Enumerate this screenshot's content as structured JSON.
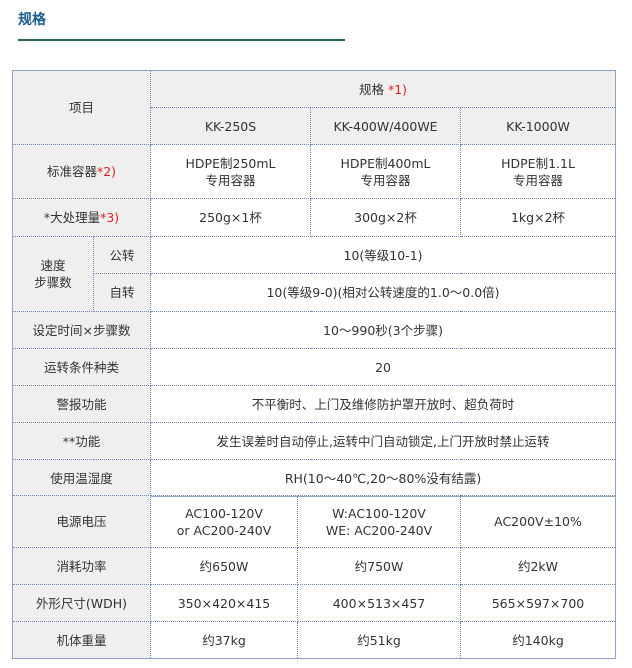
{
  "title": "规格",
  "header": {
    "item": "项目",
    "spec": "规格",
    "spec_note": "*1)",
    "models": [
      "KK-250S",
      "KK-400W/400WE",
      "KK-1000W"
    ]
  },
  "rows": {
    "container": {
      "label": "标准容器",
      "note": "*2)",
      "values": [
        [
          "HDPE制250mL",
          "专用容器"
        ],
        [
          "HDPE制400mL",
          "专用容器"
        ],
        [
          "HDPE制1.1L",
          "专用容器"
        ]
      ]
    },
    "capacity": {
      "label": "*大处理量",
      "note": "*3)",
      "values": [
        "250g×1杯",
        "300g×2杯",
        "1kg×2杯"
      ]
    },
    "speed": {
      "label": [
        "速度",
        "步骤数"
      ],
      "revolution_label": "公转",
      "revolution": "10(等级10-1)",
      "rotation_label": "自转",
      "rotation": "10(等级9-0)(相对公转速度的1.0～0.0倍)"
    },
    "time": {
      "label": "设定时间×步骤数",
      "value": "10～990秒(3个步骤)"
    },
    "conditions": {
      "label": "运转条件种类",
      "value": "20"
    },
    "alarm": {
      "label": "警报功能",
      "value": "不平衡时、上门及维修防护罩开放时、超负荷时"
    },
    "function": {
      "label": "**功能",
      "value": "发生误差时自动停止,运转中门自动锁定,上门开放时禁止运转"
    },
    "environment": {
      "label": "使用温湿度",
      "value": "RH(10～40℃,20～80%没有结露)"
    },
    "voltage": {
      "label": "电源电压",
      "values": [
        [
          "AC100-120V",
          "or AC200-240V"
        ],
        [
          "W:AC100-120V",
          "WE: AC200-240V"
        ],
        [
          "AC200V±10%"
        ]
      ]
    },
    "power": {
      "label": "消耗功率",
      "values": [
        "约650W",
        "约750W",
        "约2kW"
      ]
    },
    "dimensions": {
      "label": "外形尺寸(WDH)",
      "values": [
        "350×420×415",
        "400×513×457",
        "565×597×700"
      ]
    },
    "weight": {
      "label": "机体重量",
      "values": [
        "约37kg",
        "约51kg",
        "约140kg"
      ]
    }
  }
}
